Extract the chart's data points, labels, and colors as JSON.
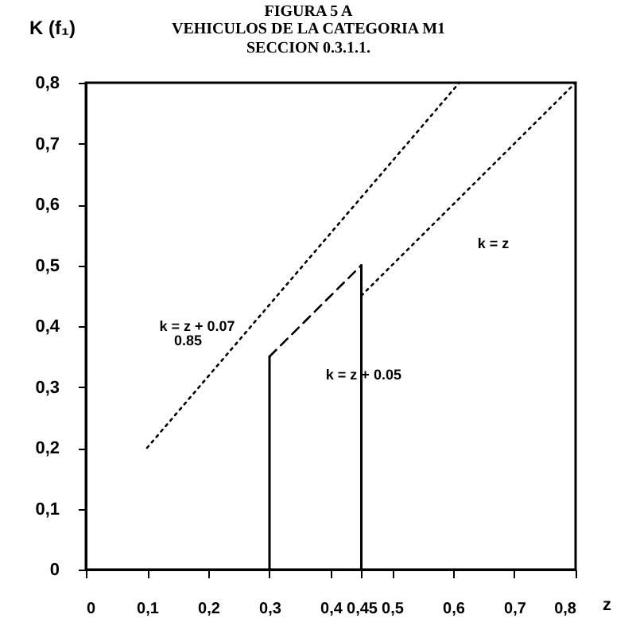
{
  "chart_data": {
    "type": "line",
    "title": "FIGURA 5 A",
    "subtitle": "VEHICULOS DE LA CATEGORIA M1\nSECCION 0.3.1.1.",
    "xlabel": "z",
    "ylabel": "K (f₁)",
    "series": [
      {
        "color": "#000000",
        "line_style": "dotted",
        "x": [
          0.1,
          0.61
        ],
        "values": [
          0.2,
          0.8
        ]
      },
      {
        "color": "#000000",
        "line_style": "dashed",
        "x": [
          0.3,
          0.45
        ],
        "values": [
          0.35,
          0.5
        ]
      },
      {
        "color": "#000000",
        "line_style": "dotted",
        "x": [
          0.45,
          0.8
        ],
        "values": [
          0.45,
          0.8
        ]
      },
      {
        "color": "#000000",
        "line_style": "solid",
        "x": [
          0.3,
          0.3
        ],
        "values": [
          0,
          0.35
        ]
      },
      {
        "color": "#000000",
        "line_style": "solid",
        "x": [
          0.45,
          0.45
        ],
        "values": [
          0,
          0.5
        ]
      }
    ],
    "annotations": [
      "k = z + 0.07",
      "0.85",
      "k = z + 0.05",
      "k = z"
    ],
    "xlim": [
      0,
      0.8
    ],
    "ylim": [
      0,
      0.8
    ],
    "xticks": [
      0,
      {
        "value": 0.1,
        "label": "0,1"
      },
      {
        "value": 0.2,
        "label": "0,2"
      },
      {
        "value": 0.3,
        "label": "0,3"
      },
      {
        "value": 0.4,
        "label": "0,4"
      },
      {
        "value": 0.45,
        "label": "0,45"
      },
      {
        "value": 0.5,
        "label": "0,5"
      },
      {
        "value": 0.6,
        "label": "0,6"
      },
      {
        "value": 0.7,
        "label": "0,7"
      },
      {
        "value": 0.8,
        "label": "0,8"
      }
    ],
    "yticks": [
      0,
      {
        "value": 0.1,
        "label": "0,1"
      },
      {
        "value": 0.2,
        "label": "0,2"
      },
      {
        "value": 0.3,
        "label": "0,3"
      },
      {
        "value": 0.4,
        "label": "0,4"
      },
      {
        "value": 0.5,
        "label": "0,5"
      },
      {
        "value": 0.6,
        "label": "0,6"
      },
      {
        "value": 0.7,
        "label": "0,7"
      },
      {
        "value": 0.8,
        "label": "0,8"
      }
    ],
    "grid": false,
    "marker": "none"
  }
}
